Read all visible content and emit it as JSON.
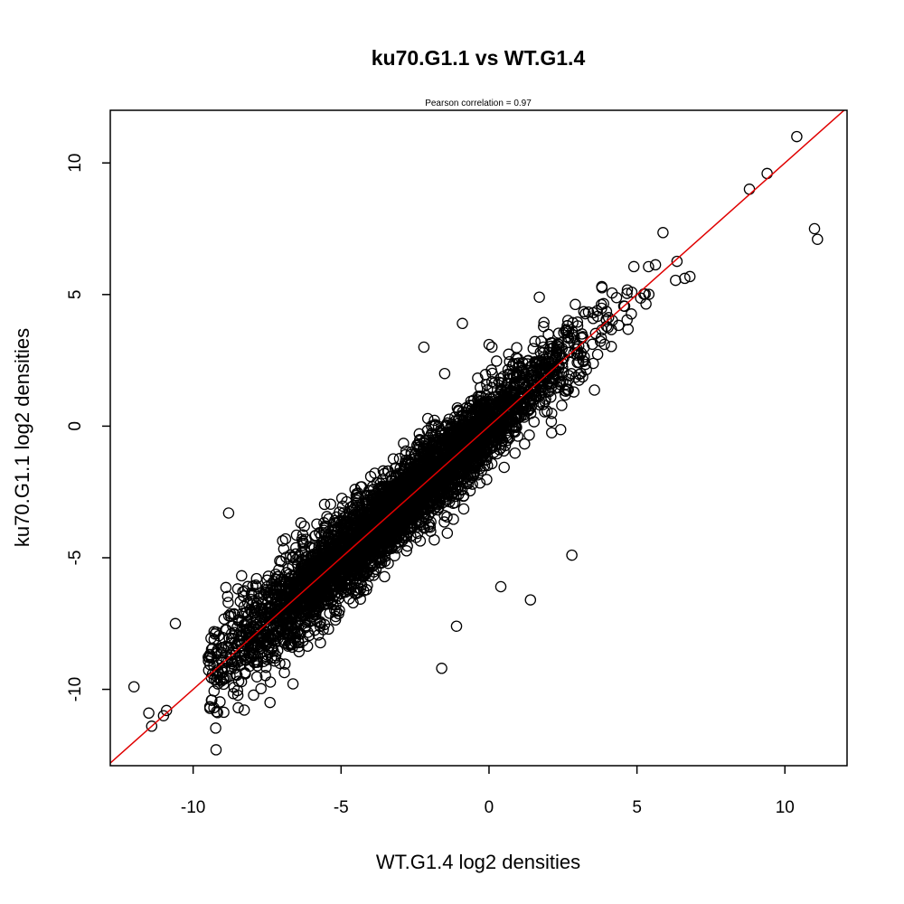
{
  "chart_data": {
    "type": "scatter",
    "title": "ku70.G1.1 vs WT.G1.4",
    "subtitle": "Pearson correlation =  0.97",
    "xlabel": "WT.G1.4 log2 densities",
    "ylabel": "ku70.G1.1 log2 densities",
    "xlim": [
      -12.8,
      12.1
    ],
    "ylim": [
      -12.9,
      12.0
    ],
    "x_ticks": [
      -10,
      -5,
      0,
      5,
      10
    ],
    "y_ticks": [
      -10,
      -5,
      0,
      5,
      10
    ],
    "x_tick_labels": [
      "-10",
      "-5",
      "0",
      "5",
      "10"
    ],
    "y_tick_labels": [
      "-10",
      "-5",
      "0",
      "5",
      "10"
    ],
    "grid": false,
    "legend": "none",
    "colors": {
      "points": "#000000",
      "fit_line": "#e00000"
    },
    "fit_line": {
      "intercept": 0.0,
      "slope": 1.0
    },
    "bulk_trend": {
      "x_min": -9.5,
      "x_max": 8.3,
      "intercept": 0.05,
      "slope": 1.0,
      "spread": 0.75
    },
    "outlier_points": {
      "x": [
        10.4,
        9.4,
        8.8,
        11.0,
        11.1,
        -2.2,
        1.7,
        2.8,
        -1.5,
        0.4,
        1.4,
        -1.1,
        -1.6,
        -12.0,
        -11.5,
        -11.4,
        -8.8,
        -7.4,
        -9.3,
        -10.6,
        -4.9,
        0.0,
        0.1,
        -11.0,
        -10.9,
        -0.9
      ],
      "y": [
        11.0,
        9.6,
        9.0,
        7.5,
        7.1,
        3.0,
        4.9,
        -4.9,
        2.0,
        -6.1,
        -6.6,
        -7.6,
        -9.2,
        -9.9,
        -10.9,
        -11.4,
        -3.3,
        -10.5,
        -10.7,
        -7.5,
        -4.8,
        3.1,
        3.0,
        -11.0,
        -10.8,
        3.9
      ]
    },
    "point_count": 4500
  }
}
